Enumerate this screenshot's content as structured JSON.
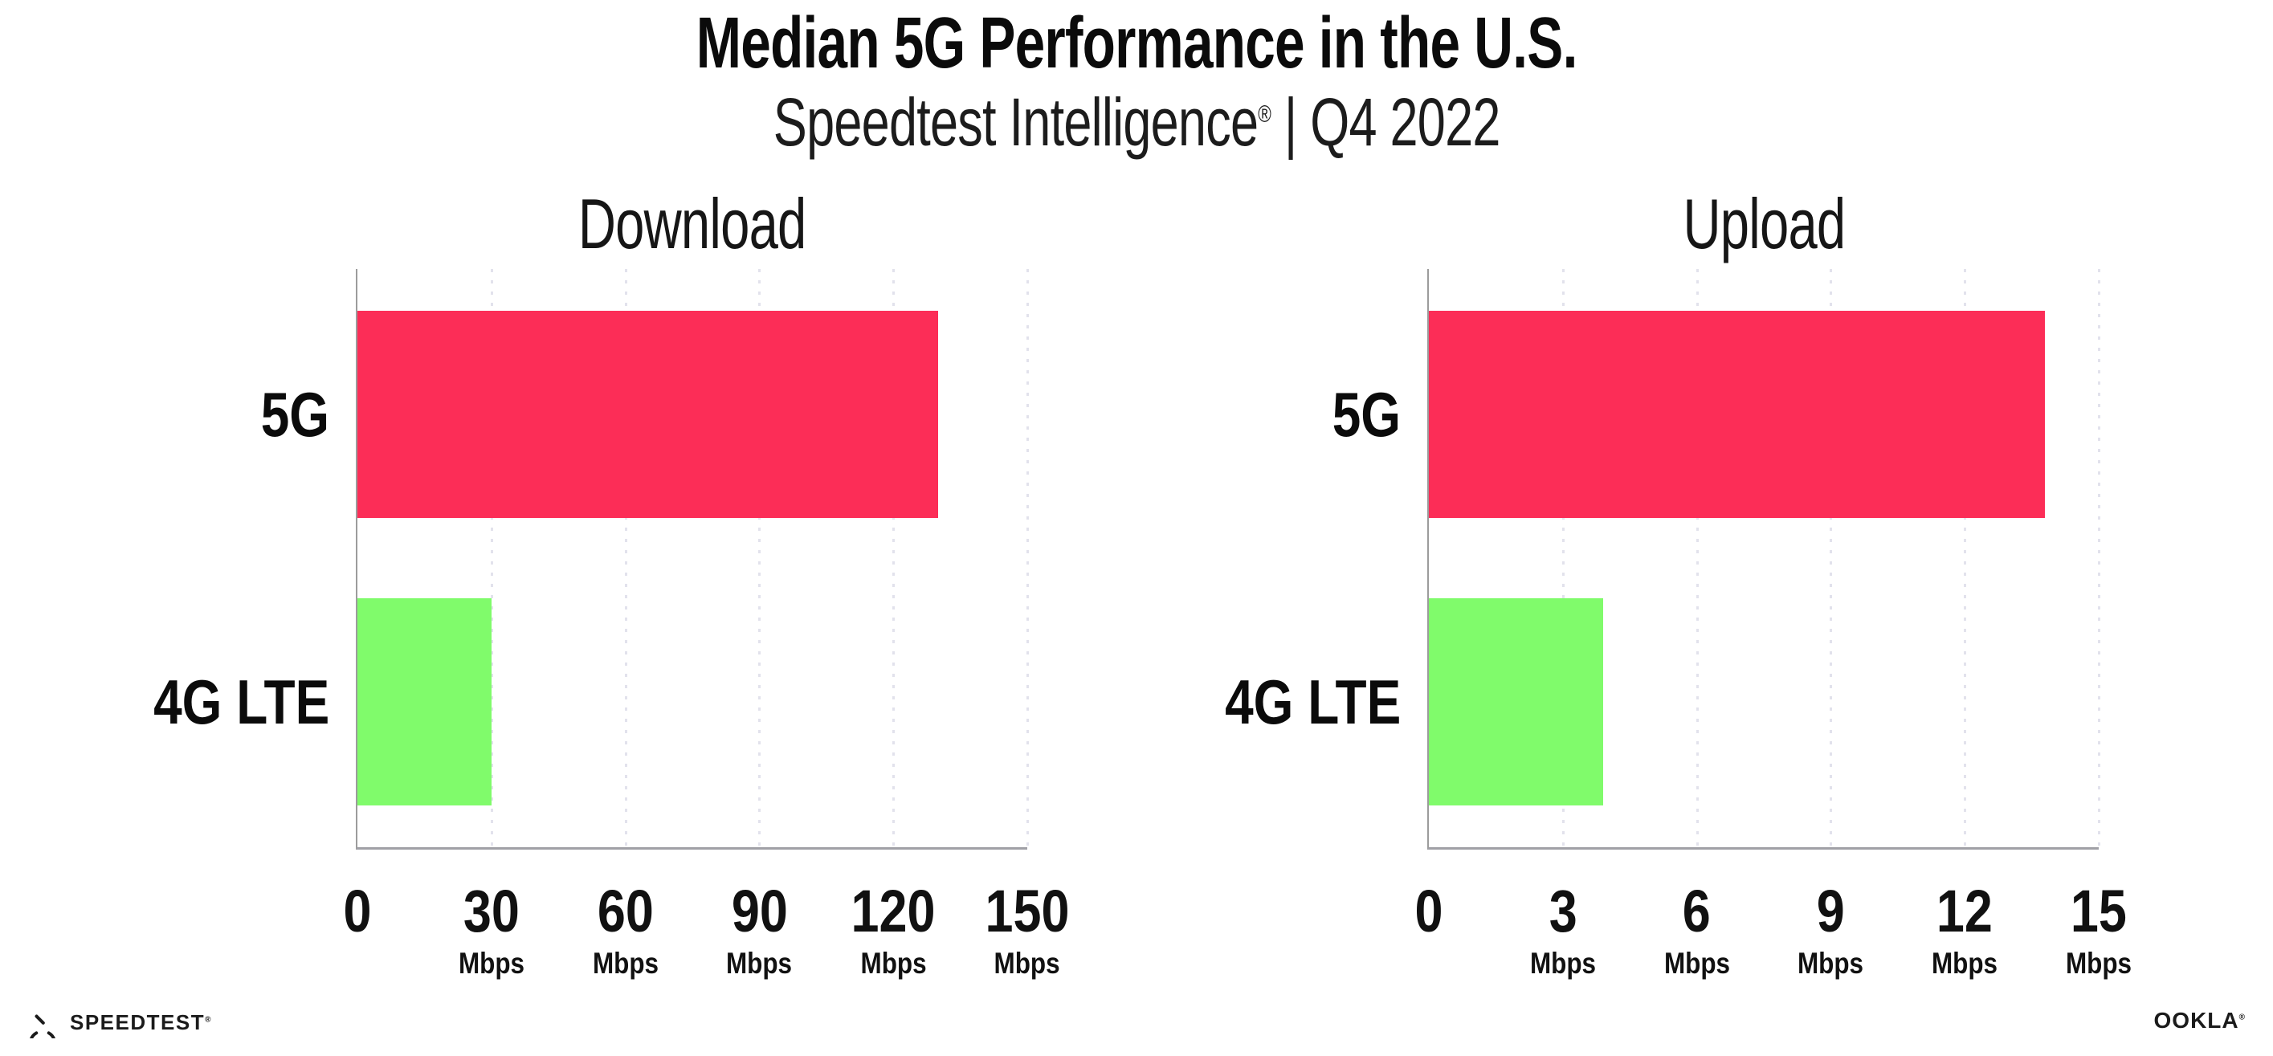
{
  "header": {
    "title": "Median 5G Performance in the U.S.",
    "subtitle_brand": "Speedtest Intelligence",
    "subtitle_reg": "®",
    "subtitle_rest": " | Q4 2022"
  },
  "colors": {
    "bar_5g": "#fc2d57",
    "bar_4g": "#80fb6b",
    "axis": "#9c9c9c",
    "gridline_dots": "#e2e2ec",
    "text": "#0b0b0b",
    "background": "#ffffff"
  },
  "chart_data": [
    {
      "type": "bar",
      "orientation": "horizontal",
      "title": "Download",
      "categories": [
        "5G",
        "4G LTE"
      ],
      "values": [
        130,
        30
      ],
      "unit": "Mbps",
      "xlim": [
        0,
        150
      ],
      "tick_labels": [
        "0",
        "30",
        "60",
        "90",
        "120",
        "150"
      ],
      "grid": "dotted-vertical",
      "legend": "none",
      "bar_colors": [
        "#fc2d57",
        "#80fb6b"
      ]
    },
    {
      "type": "bar",
      "orientation": "horizontal",
      "title": "Upload",
      "categories": [
        "5G",
        "4G LTE"
      ],
      "values": [
        13.8,
        3.9
      ],
      "unit": "Mbps",
      "xlim": [
        0,
        15
      ],
      "tick_labels": [
        "0",
        "3",
        "6",
        "9",
        "12",
        "15"
      ],
      "grid": "dotted-vertical",
      "legend": "none",
      "bar_colors": [
        "#fc2d57",
        "#80fb6b"
      ]
    }
  ],
  "footer": {
    "speedtest_label": "SPEEDTEST",
    "speedtest_reg": "®",
    "speedtest_icon": "speedtest-gauge-icon",
    "ookla_label": "OOKLA",
    "ookla_reg": "®"
  }
}
